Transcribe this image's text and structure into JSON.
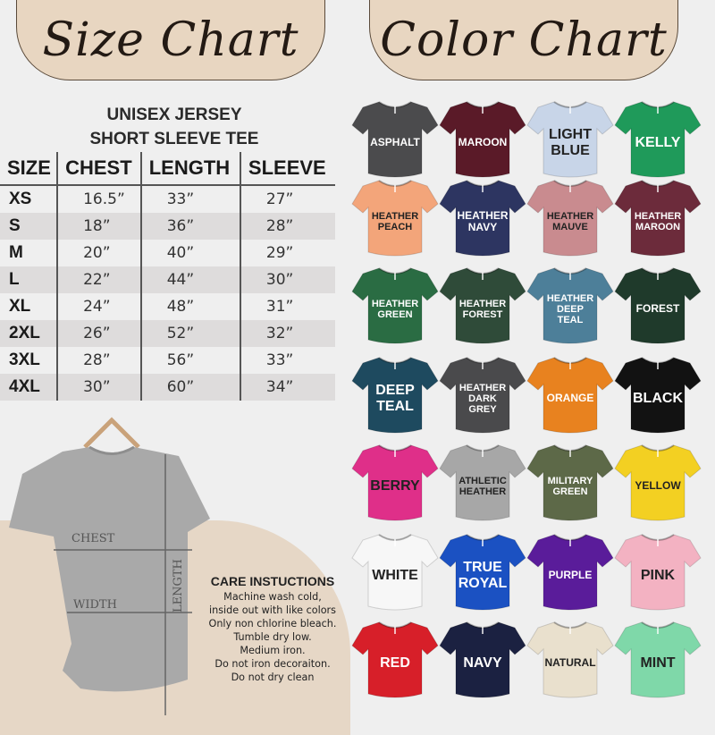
{
  "headers": {
    "size_chart": "Size Chart",
    "color_chart": "Color Chart"
  },
  "size_chart": {
    "title_line1": "UNISEX JERSEY",
    "title_line2": "SHORT SLEEVE TEE",
    "columns": [
      "SIZE",
      "CHEST",
      "LENGTH",
      "SLEEVE"
    ],
    "rows": [
      [
        "XS",
        "16.5”",
        "33”",
        "27”"
      ],
      [
        "S",
        "18”",
        "36”",
        "28”"
      ],
      [
        "M",
        "20”",
        "40”",
        "29”"
      ],
      [
        "L",
        "22”",
        "44”",
        "30”"
      ],
      [
        "XL",
        "24”",
        "48”",
        "31”"
      ],
      [
        "2XL",
        "26”",
        "52”",
        "32”"
      ],
      [
        "3XL",
        "28”",
        "56”",
        "33”"
      ],
      [
        "4XL",
        "30”",
        "60”",
        "34”"
      ]
    ]
  },
  "diagram": {
    "chest": "CHEST",
    "width": "WIDTH",
    "length": "LENGTH"
  },
  "care": {
    "title": "CARE INSTUCTIONS",
    "lines": [
      "Machine wash cold,",
      "inside out with like colors",
      "Only non chlorine bleach.",
      "Tumble dry low.",
      "Medium iron.",
      "Do not iron decoraiton.",
      "Do not dry clean"
    ]
  },
  "colors": [
    {
      "label": "ASPHALT",
      "hex": "#4b4b4d",
      "text": "#ffffff"
    },
    {
      "label": "MAROON",
      "hex": "#5a1a28",
      "text": "#ffffff"
    },
    {
      "label": "LIGHT\nBLUE",
      "hex": "#c8d5e8",
      "text": "#222222"
    },
    {
      "label": "KELLY",
      "hex": "#1f9a5a",
      "text": "#ffffff"
    },
    {
      "label": "HEATHER\nPEACH",
      "hex": "#f3a57a",
      "text": "#222222"
    },
    {
      "label": "HEATHER\nNAVY",
      "hex": "#2d3561",
      "text": "#ffffff"
    },
    {
      "label": "HEATHER\nMAUVE",
      "hex": "#c98b8f",
      "text": "#222222"
    },
    {
      "label": "HEATHER\nMAROON",
      "hex": "#6c2b3b",
      "text": "#ffffff"
    },
    {
      "label": "HEATHER\nGREEN",
      "hex": "#2a6c43",
      "text": "#ffffff"
    },
    {
      "label": "HEATHER\nFOREST",
      "hex": "#2f4b39",
      "text": "#ffffff"
    },
    {
      "label": "HEATHER\nDEEP\nTEAL",
      "hex": "#4d7f99",
      "text": "#ffffff"
    },
    {
      "label": "FOREST",
      "hex": "#1f3a2b",
      "text": "#ffffff"
    },
    {
      "label": "DEEP\nTEAL",
      "hex": "#1e4a5f",
      "text": "#ffffff"
    },
    {
      "label": "HEATHER\nDARK\nGREY",
      "hex": "#4a4a4c",
      "text": "#ffffff"
    },
    {
      "label": "ORANGE",
      "hex": "#e8821f",
      "text": "#ffffff"
    },
    {
      "label": "BLACK",
      "hex": "#121212",
      "text": "#ffffff"
    },
    {
      "label": "BERRY",
      "hex": "#df2f89",
      "text": "#222222"
    },
    {
      "label": "ATHLETIC\nHEATHER",
      "hex": "#a7a7a7",
      "text": "#222222"
    },
    {
      "label": "MILITARY\nGREEN",
      "hex": "#5d6948",
      "text": "#ffffff"
    },
    {
      "label": "YELLOW",
      "hex": "#f3d022",
      "text": "#222222"
    },
    {
      "label": "WHITE",
      "hex": "#f7f7f7",
      "text": "#222222"
    },
    {
      "label": "TRUE\nROYAL",
      "hex": "#1b51c2",
      "text": "#ffffff"
    },
    {
      "label": "PURPLE",
      "hex": "#5a1c9a",
      "text": "#ffffff"
    },
    {
      "label": "PINK",
      "hex": "#f3b2c2",
      "text": "#222222"
    },
    {
      "label": "RED",
      "hex": "#d71f29",
      "text": "#ffffff"
    },
    {
      "label": "NAVY",
      "hex": "#1b2141",
      "text": "#ffffff"
    },
    {
      "label": "NATURAL",
      "hex": "#e9e0cd",
      "text": "#222222"
    },
    {
      "label": "MINT",
      "hex": "#7fd8a9",
      "text": "#222222"
    }
  ]
}
